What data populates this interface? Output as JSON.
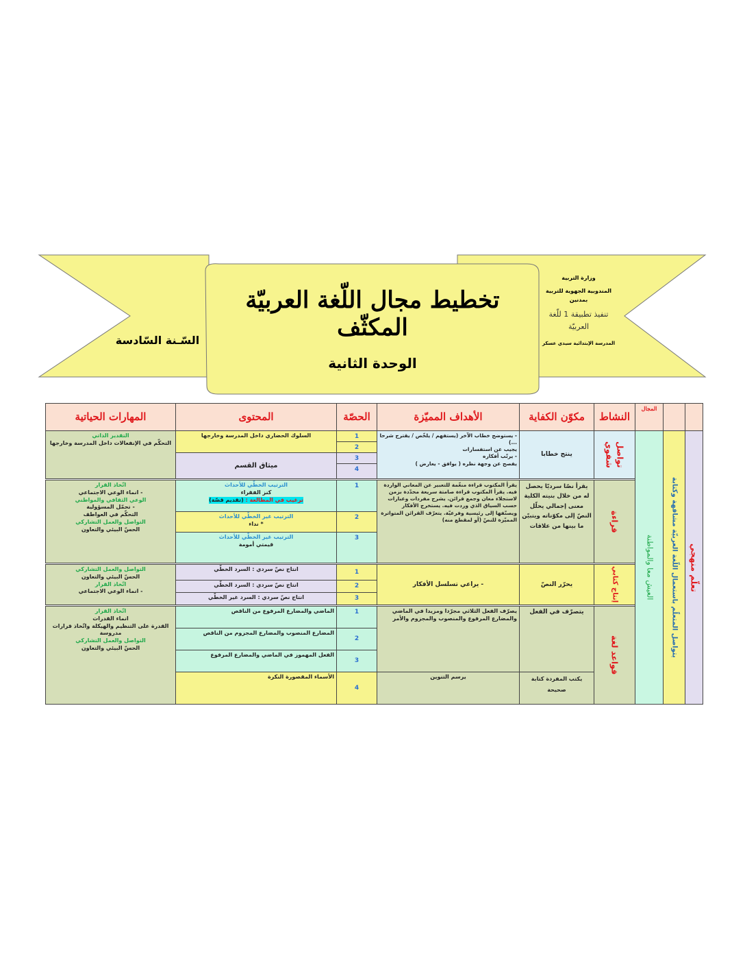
{
  "banner": {
    "title": "تخطيط مجال اللّغة العربيّة المكثّف",
    "unit": "الوحدة الثانية",
    "grade": "السّـنة السّادسة",
    "ministry": "وزارة التربية",
    "directorate": "المندوبية الجهوية للتربية بمدنين",
    "method": "تنفيذ تطبيقة 1 للّغة العربيّة",
    "school": "المدرسة الإبتدائية سيدي عسكر"
  },
  "headers": {
    "skills": "المهارات الحياتية",
    "content": "المحتوى",
    "session": "الحصّة",
    "objectives": "الأهداف المميّزة",
    "component": "مكوّن الكفاية",
    "activity": "النشاط",
    "domain": "المجال"
  },
  "side": {
    "domain": "العيش معا والمواطنة",
    "competency": "يتواصل المتعلّم باستعمال اللّغة العربيّة مشافهة وكتابة",
    "method": "تعلّم منهجي"
  },
  "oral": {
    "activity": "تواصل شفوي",
    "component": "ينتج خطابا",
    "objectives": [
      "- يستوضح خطاب الآخر (يستفهم / يلخّص / يقترح شرحا ...)",
      "يجيب عن استفسارات",
      "- يرتّب أفكاره",
      "يفصح عن وجهة نظره ( يوافق - يعارض )"
    ],
    "skills_title": "التقدير الذاتي",
    "skills": "التحكّم في الإنفعالات داخل المدرسة وخارجها",
    "content": [
      "السلوك الحضاري داخل المدرسة وخارجها",
      "ميثاق القسم"
    ],
    "sessions": [
      "1",
      "2",
      "3",
      "4"
    ]
  },
  "reading": {
    "activity": "قراءة",
    "component": "يقرأ نصّا سرديّا يحصل له من خلال بنيته الكلية معنى إجمالي يحلّل النصّ إلى مكوّناته ويتبيّن ما بينها من علاقات",
    "objectives": "يقرأ المكتوب قراءة منغّمة للتعبير عن المعاني الواردة فيه. يقرأ المكتوب قراءة صامتة سريعة محدّدة بزمن لاستجلاء معان وجمع قرائن. يشرح مفردات وعبارات حسب السياق الذي وردت فيه. يستخرج الأفكار ويصنّفها إلى رئيسية وفرعيّة. يتعرّف القرائن المتواترة المميّزة للنصّ (أو لمقطع منه)",
    "skills": [
      {
        "t": "اتّخاذ القرار",
        "c": "g"
      },
      {
        "t": "- انماء الوعي الاجتماعي",
        "c": ""
      },
      {
        "t": "الوعي الثقافي والمواطني",
        "c": "g"
      },
      {
        "t": "- تحمّل المسؤولية",
        "c": ""
      },
      {
        "t": "التحكّم في العواطف",
        "c": ""
      },
      {
        "t": "التواصل والعمل التشاركي",
        "c": "g"
      },
      {
        "t": "الحسّ البيئي والتعاون",
        "c": ""
      }
    ],
    "rows": [
      {
        "session": "1",
        "title": "الترتيب الخطّي للأحداث",
        "text": "كنز الفقراء",
        "extra": "ترغيب في المطالعة :",
        "extra2": "(تقديم قصّة)"
      },
      {
        "session": "2",
        "title": "الترتيب غير الخطّي للأحداث",
        "text": "* نداء"
      },
      {
        "session": "3",
        "title": "الترتيب غير الخطّي للأحداث",
        "text": "قيمتي أمومة"
      }
    ]
  },
  "writing": {
    "activity": "إنتاج كتابي",
    "component": "يحرّر النصّ",
    "objectives": "- يراعي تسلسل الأفكار",
    "skills": [
      {
        "t": "التواصل والعمل التشاركي",
        "c": "g"
      },
      {
        "t": "الحسّ البيئي والتعاون",
        "c": ""
      },
      {
        "t": "اتّخاذ القرار",
        "c": "g"
      },
      {
        "t": "- انماء الوعي الاجتماعي",
        "c": ""
      }
    ],
    "rows": [
      {
        "session": "1",
        "text": "انتاج نصّ سردي : السرد الخطّي"
      },
      {
        "session": "2",
        "text": "انتاج نصّ سردي : السرد الخطّي"
      },
      {
        "session": "3",
        "text": "انتاج نصّ سردي : السرد غير الخطّي"
      }
    ]
  },
  "grammar": {
    "activity": "قواعد لغة",
    "component1": "يتصرّف في الفعل",
    "component2": "يكتب المفردة كتابة صحيحة",
    "objectives1": "يصرّف الفعل الثلاثي مجرّدا ومزيدا في الماضي والمضارع المرفوع والمنصوب والمجزوم والأمر",
    "objectives2": "يرسم التنوين",
    "skills": [
      {
        "t": "اتّخاذ القرار",
        "c": "g"
      },
      {
        "t": "انماء القدرات",
        "c": ""
      },
      {
        "t": "القدرة على التنظيم والهيكلة واتّخاذ قرارات مدروسة",
        "c": ""
      },
      {
        "t": "التواصل والعمل التشاركي",
        "c": "g"
      },
      {
        "t": "الحسّ البيئي والتعاون",
        "c": ""
      }
    ],
    "rows": [
      {
        "session": "1",
        "text": "الماضي والمضارع المرفوع من الناقص"
      },
      {
        "session": "2",
        "text": "المضارع المنصوب والمضارع المجزوم من الناقص"
      },
      {
        "session": "3",
        "text": "الفعل المهموز في الماضي والمضارع المرفوع"
      },
      {
        "session": "4",
        "text": "الأسماء المقصورة النكرة"
      }
    ]
  },
  "colors": {
    "banner": "#f7f48e",
    "header_bg": "#fbe0d2",
    "header_text": "#e0191d",
    "green_text": "#1fa84a",
    "blue_text": "#2a8fd0"
  }
}
